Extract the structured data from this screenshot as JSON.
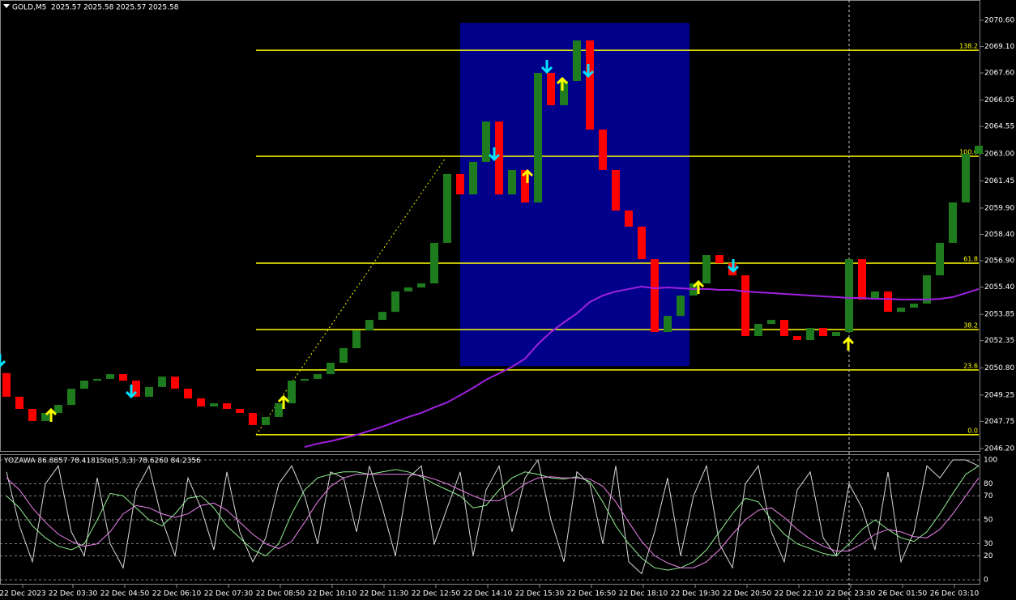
{
  "chart_data": [
    {
      "type": "candlestick",
      "title": "GOLD,M5",
      "subtitle": "2025.57 2025.58 2025.57 2025.58",
      "open": 2050.5,
      "closes": [
        2049.15,
        2048.46,
        2047.77,
        2048.23,
        2048.69,
        2049.61,
        2050.07,
        2050.17,
        2050.44,
        2050.07,
        2049.15,
        2049.71,
        2050.3,
        2049.61,
        2049.06,
        2048.6,
        2048.78,
        2048.46,
        2048.23,
        2047.54,
        2048.0,
        2048.78,
        2050.07,
        2050.17,
        2050.44,
        2051.09,
        2051.92,
        2052.93,
        2053.53,
        2053.99,
        2055.15,
        2055.38,
        2055.61,
        2057.92,
        2061.84,
        2060.68,
        2062.53,
        2064.83,
        2060.68,
        2062.07,
        2060.22,
        2067.6,
        2065.76,
        2067.14,
        2069.45,
        2064.37,
        2062.07,
        2059.76,
        2058.84,
        2056.99,
        2052.84,
        2053.76,
        2054.92,
        2055.61,
        2057.22,
        2056.76,
        2056.07,
        2052.61,
        2053.3,
        2053.53,
        2052.61,
        2052.38,
        2053.07,
        2052.61,
        2052.84,
        2056.99,
        2054.69,
        2055.15,
        2053.99,
        2054.23,
        2054.46,
        2056.07,
        2057.92,
        2060.22,
        2062.99,
        2063.45
      ],
      "up_color": "#1e7b1e",
      "down_color": "#ff0000",
      "ma_color": "#a020e0",
      "ma_values": [
        null,
        null,
        null,
        null,
        null,
        null,
        null,
        null,
        null,
        null,
        null,
        null,
        null,
        null,
        null,
        null,
        null,
        null,
        null,
        null,
        null,
        null,
        null,
        2046.29,
        2046.48,
        2046.62,
        2046.8,
        2046.98,
        2047.21,
        2047.45,
        2047.72,
        2048.0,
        2048.23,
        2048.55,
        2048.83,
        2049.24,
        2049.66,
        2050.12,
        2050.49,
        2050.86,
        2051.32,
        2052.15,
        2052.84,
        2053.39,
        2053.9,
        2054.55,
        2054.92,
        2055.15,
        2055.29,
        2055.43,
        2055.33,
        2055.38,
        2055.33,
        2055.29,
        2055.29,
        2055.24,
        2055.24,
        2055.15,
        2055.1,
        2055.06,
        2055.01,
        2054.97,
        2054.92,
        2054.87,
        2054.83,
        2054.78,
        2054.78,
        2054.73,
        2054.73,
        2054.69,
        2054.69,
        2054.69,
        2054.73,
        2054.83,
        2055.06,
        2055.29
      ],
      "zone": {
        "top": 2070.45,
        "bottom": 2050.9,
        "color": "#00008b"
      },
      "fib_color": "#ffff00",
      "fib_levels": [
        {
          "label": "138.2",
          "value": 2068.89
        },
        {
          "label": "100.0",
          "value": 2062.85
        },
        {
          "label": "61.8",
          "value": 2056.76
        },
        {
          "label": "38.2",
          "value": 2052.98
        },
        {
          "label": "23.6",
          "value": 2050.68
        },
        {
          "label": "0.0",
          "value": 2046.99
        }
      ],
      "ylim": [
        2046.2,
        2070.6
      ],
      "yticks": [
        {
          "value": 2070.6,
          "label": "2070.60"
        },
        {
          "value": 2069.1,
          "label": "2069.10"
        },
        {
          "value": 2067.6,
          "label": "2067.60"
        },
        2066.05,
        2064.55,
        {
          "value": 2063.0,
          "label": "2063.00"
        },
        2061.45,
        {
          "value": 2059.9,
          "label": "2059.90"
        },
        {
          "value": 2058.4,
          "label": "2058.40"
        },
        {
          "value": 2056.9,
          "label": "2056.90"
        },
        {
          "value": 2055.4,
          "label": "2055.40"
        },
        2053.85,
        2052.35,
        {
          "value": 2050.8,
          "label": "2050.80"
        },
        2049.25,
        2047.75,
        {
          "value": 2046.2,
          "label": "2046.20"
        }
      ],
      "x_labels": [
        "22 Dec 2023",
        "22 Dec 03:30",
        "22 Dec 04:50",
        "22 Dec 06:10",
        "22 Dec 07:30",
        "22 Dec 08:50",
        "22 Dec 10:10",
        "22 Dec 11:30",
        "22 Dec 12:50",
        "22 Dec 14:10",
        "22 Dec 15:30",
        "22 Dec 16:50",
        "22 Dec 18:10",
        "22 Dec 19:30",
        "22 Dec 20:50",
        "22 Dec 22:10",
        "22 Dec 23:30",
        "26 Dec 01:50",
        "26 Dec 03:10"
      ]
    },
    {
      "type": "line",
      "title": "YOZAWA 86.8857 78.4181",
      "subtitle": "Sto(5,3,3) 78.6260 84.2356",
      "ylim": [
        0,
        100
      ],
      "yticks": [
        100,
        80,
        70,
        50,
        30,
        20,
        0
      ],
      "lines": [
        {
          "color": "#d8d8d8",
          "values": [
            90,
            45,
            15,
            80,
            95,
            40,
            20,
            85,
            30,
            10,
            75,
            95,
            50,
            20,
            85,
            60,
            25,
            90,
            40,
            15,
            35,
            80,
            95,
            70,
            30,
            90,
            85,
            40,
            95,
            60,
            20,
            85,
            95,
            30,
            60,
            90,
            20,
            75,
            95,
            40,
            85,
            100,
            50,
            15,
            90,
            80,
            30,
            95,
            15,
            5,
            40,
            85,
            20,
            70,
            95,
            30,
            10,
            80,
            95,
            40,
            15,
            75,
            90,
            35,
            20,
            80,
            60,
            25,
            90,
            15,
            40,
            95,
            85,
            100,
            100,
            95
          ]
        },
        {
          "color": "#90ee90",
          "values": [
            70,
            60,
            45,
            35,
            28,
            25,
            30,
            50,
            72,
            70,
            60,
            50,
            45,
            55,
            68,
            70,
            60,
            45,
            35,
            25,
            20,
            30,
            55,
            75,
            85,
            88,
            90,
            90,
            88,
            90,
            92,
            90,
            86,
            80,
            75,
            70,
            60,
            62,
            75,
            85,
            90,
            88,
            85,
            84,
            86,
            82,
            65,
            45,
            30,
            18,
            10,
            8,
            10,
            15,
            25,
            40,
            55,
            68,
            65,
            50,
            38,
            30,
            26,
            22,
            20,
            30,
            42,
            50,
            42,
            35,
            32,
            40,
            55,
            72,
            88,
            95
          ]
        },
        {
          "color": "#ee82ee",
          "values": [
            85,
            75,
            60,
            48,
            38,
            32,
            28,
            30,
            40,
            55,
            62,
            60,
            55,
            52,
            55,
            62,
            64,
            58,
            48,
            38,
            30,
            26,
            32,
            48,
            65,
            78,
            85,
            88,
            88,
            88,
            88,
            88,
            87,
            84,
            80,
            75,
            70,
            66,
            66,
            72,
            80,
            85,
            86,
            85,
            85,
            84,
            78,
            65,
            48,
            32,
            20,
            14,
            10,
            10,
            15,
            25,
            38,
            50,
            58,
            60,
            52,
            42,
            34,
            28,
            24,
            24,
            30,
            38,
            42,
            40,
            36,
            35,
            42,
            55,
            70,
            85
          ]
        }
      ]
    }
  ]
}
